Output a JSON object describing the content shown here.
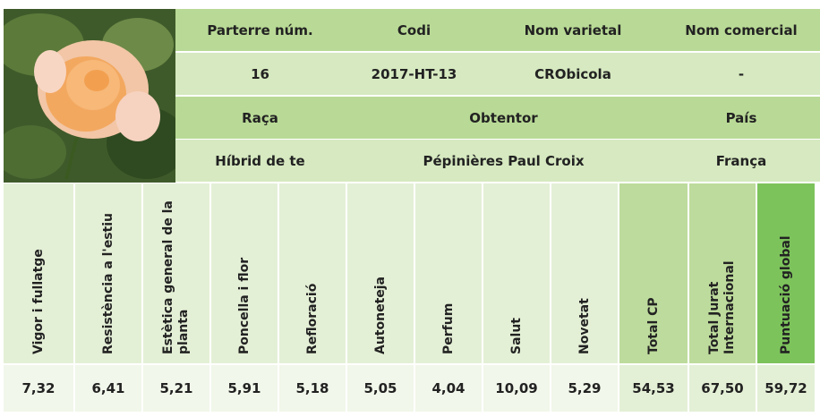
{
  "info": {
    "row1": {
      "labels": [
        "Parterre núm.",
        "Codi",
        "Nom varietal",
        "Nom comercial"
      ],
      "values": [
        "16",
        "2017-HT-13",
        "CRObicola",
        "-"
      ]
    },
    "row2": {
      "labels": [
        "Raça",
        "Obtentor",
        "País"
      ],
      "values": [
        "Híbrid de te",
        "Pépinières Paul Croix",
        "França"
      ]
    }
  },
  "scores": {
    "headers": [
      "Vigor i fullatge",
      "Resistència a l'estiu",
      "Estètica general de la planta",
      "Poncella i flor",
      "Refloració",
      "Autoneteja",
      "Perfum",
      "Salut",
      "Novetat",
      "Total CP",
      "Total Jurat Internacional",
      "Puntuació global"
    ],
    "values": [
      "7,32",
      "6,41",
      "5,21",
      "5,91",
      "5,18",
      "5,05",
      "4,04",
      "10,09",
      "5,29",
      "54,53",
      "67,50",
      "59,72"
    ]
  }
}
